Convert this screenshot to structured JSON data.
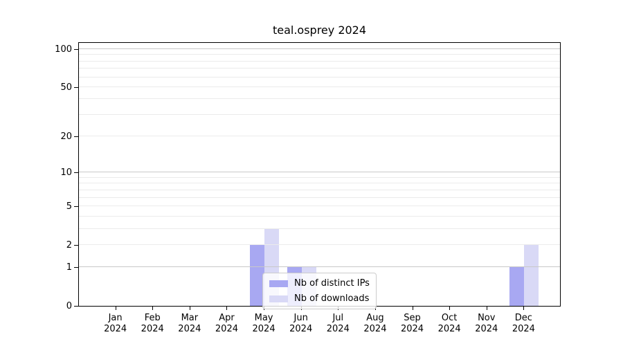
{
  "figure": {
    "title": "teal.osprey 2024"
  },
  "chart_data": {
    "type": "bar",
    "title": "teal.osprey 2024",
    "x_tick_months": [
      "Jan",
      "Feb",
      "Mar",
      "Apr",
      "May",
      "Jun",
      "Jul",
      "Aug",
      "Sep",
      "Oct",
      "Nov",
      "Dec"
    ],
    "x_tick_year": "2024",
    "series": [
      {
        "name": "Nb of distinct IPs",
        "color": "#a8a8f2",
        "values": [
          0,
          0,
          0,
          0,
          2,
          1,
          0,
          0,
          0,
          0,
          0,
          1
        ]
      },
      {
        "name": "Nb of downloads",
        "color": "#d9d9f6",
        "values": [
          0,
          0,
          0,
          0,
          3,
          1,
          0,
          0,
          0,
          0,
          0,
          2
        ]
      }
    ],
    "yscale": "log1p",
    "ytick_values": [
      0,
      1,
      2,
      5,
      10,
      20,
      50,
      100
    ],
    "ytick_labels": [
      "0",
      "1",
      "2",
      "5",
      "10",
      "20",
      "50",
      "100"
    ],
    "ylim": [
      0,
      115
    ],
    "grid": "horizontal",
    "grid_major_values": [
      1,
      10,
      100
    ],
    "grid_minor_values": [
      2,
      3,
      4,
      5,
      6,
      7,
      8,
      9,
      20,
      30,
      40,
      50,
      60,
      70,
      80,
      90
    ],
    "legend_position": "lower center, inside axes",
    "legend": {
      "entries": [
        {
          "label": "Nb of distinct IPs",
          "color": "#a8a8f2"
        },
        {
          "label": "Nb of downloads",
          "color": "#d9d9f6"
        }
      ]
    },
    "colors": {
      "axis": "#000000",
      "grid_major": "#c8c8c8",
      "grid_minor": "#ebebeb",
      "background": "#ffffff"
    }
  }
}
